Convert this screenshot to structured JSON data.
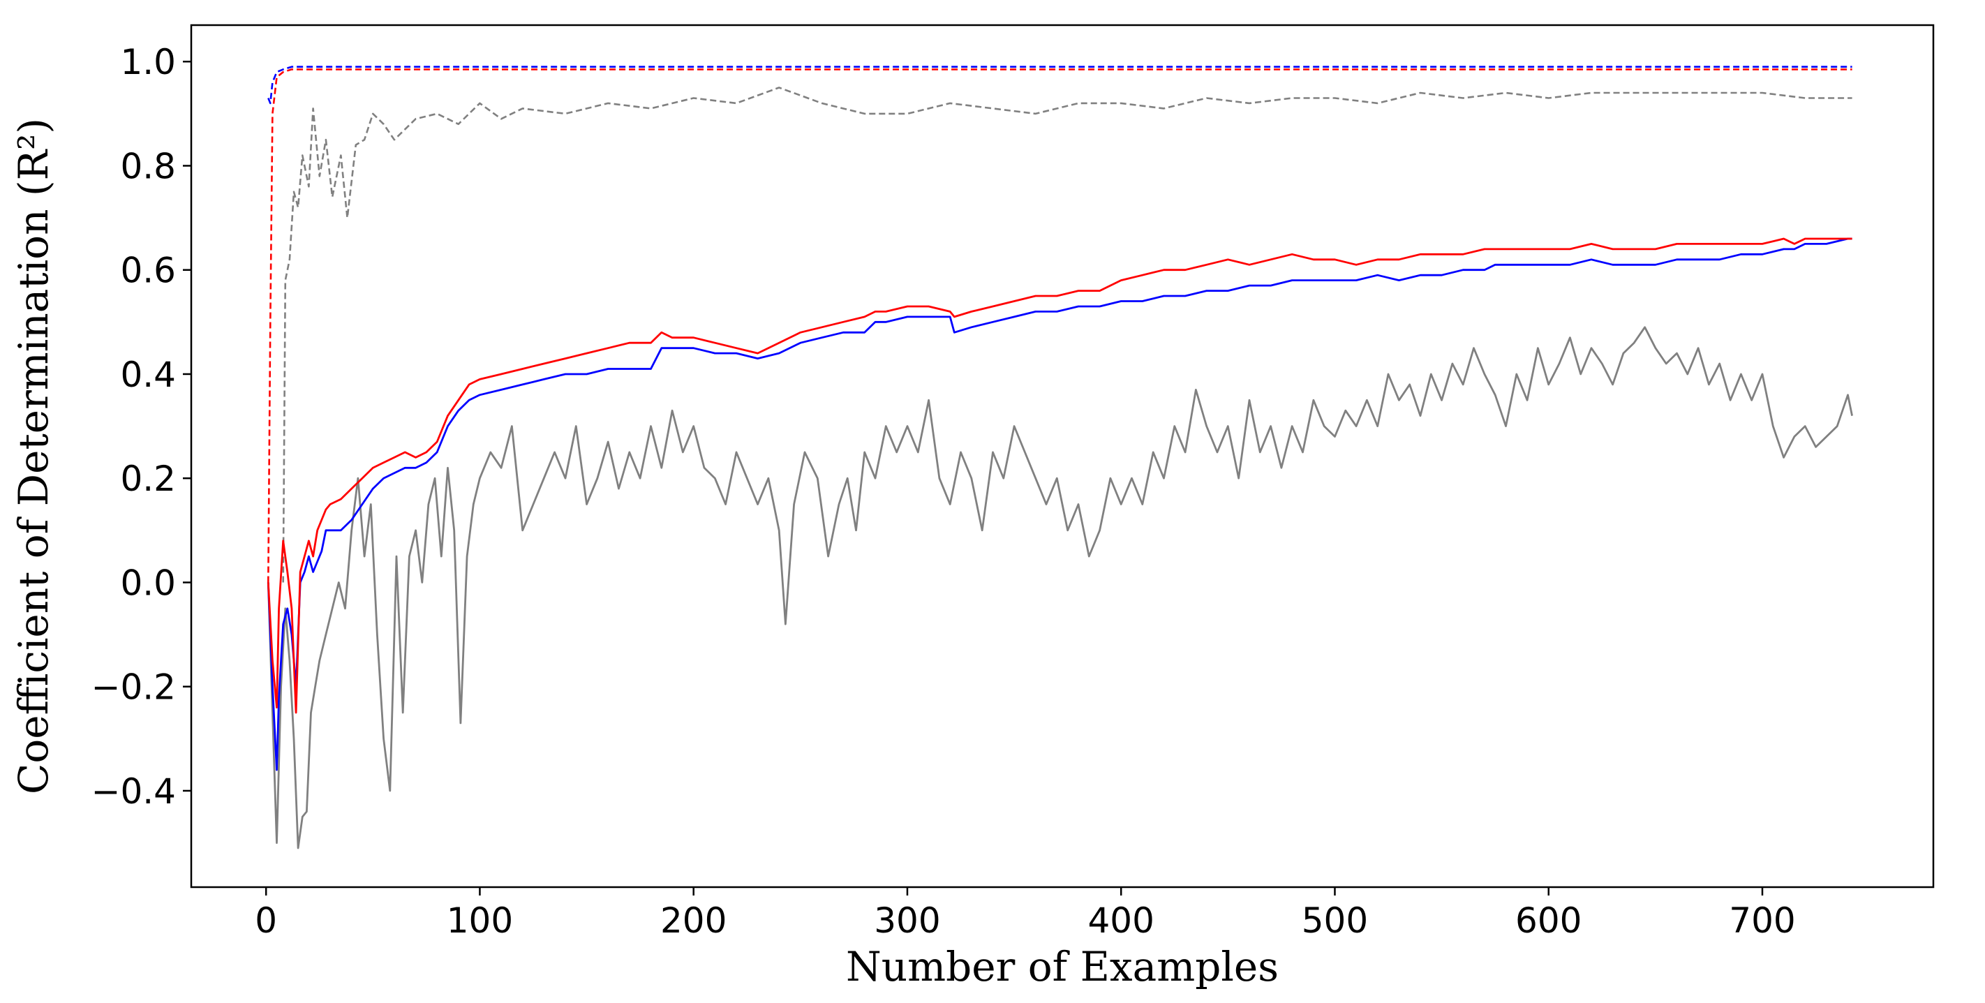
{
  "chart_data": {
    "type": "line",
    "title": "",
    "xlabel": "Number of Examples",
    "ylabel": "Coefficient of Determination (R²)",
    "xlim": [
      -35,
      780
    ],
    "ylim": [
      -0.585,
      1.07
    ],
    "x_ticks": [
      0,
      100,
      200,
      300,
      400,
      500,
      600,
      700
    ],
    "x_tick_labels": [
      "0",
      "100",
      "200",
      "300",
      "400",
      "500",
      "600",
      "700"
    ],
    "y_ticks": [
      -0.4,
      -0.2,
      0.0,
      0.2,
      0.4,
      0.6,
      0.8,
      1.0
    ],
    "y_tick_labels": [
      "−0.4",
      "−0.2",
      "0.0",
      "0.2",
      "0.4",
      "0.6",
      "0.8",
      "1.0"
    ],
    "grid": false,
    "legend": "none",
    "colors": {
      "red": "#ff0000",
      "blue": "#0000ff",
      "gray": "#808080"
    },
    "series": [
      {
        "name": "gray-dashed",
        "color": "#808080",
        "style": "dashed",
        "x": [
          8,
          9,
          11,
          13,
          15,
          17,
          20,
          22,
          25,
          28,
          31,
          35,
          38,
          42,
          46,
          50,
          55,
          60,
          70,
          80,
          90,
          100,
          110,
          120,
          140,
          160,
          180,
          200,
          220,
          240,
          260,
          280,
          300,
          320,
          340,
          360,
          380,
          400,
          420,
          440,
          460,
          480,
          500,
          520,
          540,
          560,
          580,
          600,
          620,
          640,
          660,
          680,
          700,
          720,
          742
        ],
        "y": [
          0.0,
          0.58,
          0.62,
          0.75,
          0.72,
          0.82,
          0.76,
          0.91,
          0.78,
          0.85,
          0.74,
          0.82,
          0.7,
          0.84,
          0.85,
          0.9,
          0.88,
          0.85,
          0.89,
          0.9,
          0.88,
          0.92,
          0.89,
          0.91,
          0.9,
          0.92,
          0.91,
          0.93,
          0.92,
          0.95,
          0.92,
          0.9,
          0.9,
          0.92,
          0.91,
          0.9,
          0.92,
          0.92,
          0.91,
          0.93,
          0.92,
          0.93,
          0.93,
          0.92,
          0.94,
          0.93,
          0.94,
          0.93,
          0.94,
          0.94,
          0.94,
          0.94,
          0.94,
          0.93,
          0.93
        ]
      },
      {
        "name": "blue-dashed",
        "color": "#0000ff",
        "style": "dashed",
        "x": [
          1,
          2,
          3,
          5,
          8,
          12,
          20,
          40,
          100,
          200,
          300,
          400,
          500,
          600,
          700,
          742
        ],
        "y": [
          0.93,
          0.92,
          0.96,
          0.98,
          0.985,
          0.99,
          0.99,
          0.99,
          0.99,
          0.99,
          0.99,
          0.99,
          0.99,
          0.99,
          0.99,
          0.99
        ]
      },
      {
        "name": "red-dashed",
        "color": "#ff0000",
        "style": "dashed",
        "x": [
          1,
          2,
          3,
          5,
          8,
          12,
          20,
          40,
          100,
          200,
          300,
          400,
          500,
          600,
          700,
          742
        ],
        "y": [
          0.0,
          0.5,
          0.9,
          0.97,
          0.98,
          0.985,
          0.985,
          0.985,
          0.985,
          0.985,
          0.985,
          0.985,
          0.985,
          0.985,
          0.985,
          0.985
        ]
      },
      {
        "name": "gray-solid",
        "color": "#808080",
        "style": "solid",
        "x": [
          1,
          3,
          5,
          7,
          9,
          11,
          13,
          15,
          17,
          19,
          21,
          23,
          25,
          28,
          31,
          34,
          37,
          40,
          43,
          46,
          49,
          52,
          55,
          58,
          61,
          64,
          67,
          70,
          73,
          76,
          79,
          82,
          85,
          88,
          91,
          94,
          97,
          100,
          105,
          110,
          115,
          120,
          125,
          130,
          135,
          140,
          145,
          150,
          155,
          160,
          165,
          170,
          175,
          180,
          185,
          190,
          195,
          200,
          205,
          210,
          215,
          220,
          225,
          230,
          235,
          240,
          243,
          247,
          252,
          258,
          263,
          268,
          272,
          276,
          280,
          285,
          290,
          295,
          300,
          305,
          310,
          315,
          320,
          325,
          330,
          335,
          340,
          345,
          350,
          355,
          360,
          365,
          370,
          375,
          380,
          385,
          390,
          395,
          400,
          405,
          410,
          415,
          420,
          425,
          430,
          435,
          440,
          445,
          450,
          455,
          460,
          465,
          470,
          475,
          480,
          485,
          490,
          495,
          500,
          505,
          510,
          515,
          520,
          525,
          530,
          535,
          540,
          545,
          550,
          555,
          560,
          565,
          570,
          575,
          580,
          585,
          590,
          595,
          600,
          605,
          610,
          615,
          620,
          625,
          630,
          635,
          640,
          645,
          650,
          655,
          660,
          665,
          670,
          675,
          680,
          685,
          690,
          695,
          700,
          705,
          710,
          715,
          720,
          725,
          730,
          735,
          740,
          742
        ],
        "y": [
          0.0,
          -0.25,
          -0.5,
          -0.2,
          -0.05,
          -0.15,
          -0.3,
          -0.51,
          -0.45,
          -0.44,
          -0.25,
          -0.2,
          -0.15,
          -0.1,
          -0.05,
          0.0,
          -0.05,
          0.1,
          0.2,
          0.05,
          0.15,
          -0.1,
          -0.3,
          -0.4,
          0.05,
          -0.25,
          0.05,
          0.1,
          0.0,
          0.15,
          0.2,
          0.05,
          0.22,
          0.1,
          -0.27,
          0.05,
          0.15,
          0.2,
          0.25,
          0.22,
          0.3,
          0.1,
          0.15,
          0.2,
          0.25,
          0.2,
          0.3,
          0.15,
          0.2,
          0.27,
          0.18,
          0.25,
          0.2,
          0.3,
          0.22,
          0.33,
          0.25,
          0.3,
          0.22,
          0.2,
          0.15,
          0.25,
          0.2,
          0.15,
          0.2,
          0.1,
          -0.08,
          0.15,
          0.25,
          0.2,
          0.05,
          0.15,
          0.2,
          0.1,
          0.25,
          0.2,
          0.3,
          0.25,
          0.3,
          0.25,
          0.35,
          0.2,
          0.15,
          0.25,
          0.2,
          0.1,
          0.25,
          0.2,
          0.3,
          0.25,
          0.2,
          0.15,
          0.2,
          0.1,
          0.15,
          0.05,
          0.1,
          0.2,
          0.15,
          0.2,
          0.15,
          0.25,
          0.2,
          0.3,
          0.25,
          0.37,
          0.3,
          0.25,
          0.3,
          0.2,
          0.35,
          0.25,
          0.3,
          0.22,
          0.3,
          0.25,
          0.35,
          0.3,
          0.28,
          0.33,
          0.3,
          0.35,
          0.3,
          0.4,
          0.35,
          0.38,
          0.32,
          0.4,
          0.35,
          0.42,
          0.38,
          0.45,
          0.4,
          0.36,
          0.3,
          0.4,
          0.35,
          0.45,
          0.38,
          0.42,
          0.47,
          0.4,
          0.45,
          0.42,
          0.38,
          0.44,
          0.46,
          0.49,
          0.45,
          0.42,
          0.44,
          0.4,
          0.45,
          0.38,
          0.42,
          0.35,
          0.4,
          0.35,
          0.4,
          0.3,
          0.24,
          0.28,
          0.3,
          0.26,
          0.28,
          0.3,
          0.36,
          0.32
        ]
      },
      {
        "name": "blue-solid",
        "color": "#0000ff",
        "style": "solid",
        "x": [
          1,
          3,
          5,
          6,
          8,
          10,
          12,
          14,
          16,
          18,
          20,
          22,
          24,
          26,
          28,
          30,
          35,
          40,
          45,
          50,
          55,
          60,
          65,
          70,
          75,
          80,
          85,
          90,
          95,
          100,
          110,
          120,
          130,
          140,
          150,
          160,
          170,
          180,
          185,
          190,
          200,
          210,
          220,
          230,
          240,
          250,
          260,
          270,
          280,
          285,
          290,
          300,
          310,
          320,
          322,
          330,
          340,
          350,
          360,
          370,
          380,
          390,
          400,
          410,
          420,
          430,
          440,
          450,
          460,
          470,
          480,
          490,
          500,
          510,
          520,
          530,
          540,
          550,
          560,
          570,
          575,
          580,
          590,
          600,
          610,
          620,
          630,
          640,
          650,
          660,
          670,
          680,
          690,
          700,
          710,
          715,
          720,
          730,
          740,
          742
        ],
        "y": [
          0.0,
          -0.2,
          -0.36,
          -0.22,
          -0.08,
          -0.05,
          -0.1,
          -0.2,
          0.0,
          0.02,
          0.05,
          0.02,
          0.04,
          0.06,
          0.1,
          0.1,
          0.1,
          0.12,
          0.15,
          0.18,
          0.2,
          0.21,
          0.22,
          0.22,
          0.23,
          0.25,
          0.3,
          0.33,
          0.35,
          0.36,
          0.37,
          0.38,
          0.39,
          0.4,
          0.4,
          0.41,
          0.41,
          0.41,
          0.45,
          0.45,
          0.45,
          0.44,
          0.44,
          0.43,
          0.44,
          0.46,
          0.47,
          0.48,
          0.48,
          0.5,
          0.5,
          0.51,
          0.51,
          0.51,
          0.48,
          0.49,
          0.5,
          0.51,
          0.52,
          0.52,
          0.53,
          0.53,
          0.54,
          0.54,
          0.55,
          0.55,
          0.56,
          0.56,
          0.57,
          0.57,
          0.58,
          0.58,
          0.58,
          0.58,
          0.59,
          0.58,
          0.59,
          0.59,
          0.6,
          0.6,
          0.61,
          0.61,
          0.61,
          0.61,
          0.61,
          0.62,
          0.61,
          0.61,
          0.61,
          0.62,
          0.62,
          0.62,
          0.63,
          0.63,
          0.64,
          0.64,
          0.65,
          0.65,
          0.66,
          0.66
        ]
      },
      {
        "name": "red-solid",
        "color": "#ff0000",
        "style": "solid",
        "x": [
          1,
          3,
          5,
          6,
          8,
          10,
          12,
          14,
          16,
          18,
          20,
          22,
          24,
          26,
          28,
          30,
          35,
          40,
          45,
          50,
          55,
          60,
          65,
          70,
          75,
          80,
          85,
          90,
          95,
          100,
          110,
          120,
          130,
          140,
          150,
          160,
          170,
          180,
          185,
          190,
          200,
          210,
          220,
          230,
          240,
          250,
          260,
          270,
          280,
          285,
          290,
          300,
          310,
          320,
          322,
          330,
          340,
          350,
          360,
          370,
          380,
          390,
          400,
          410,
          420,
          430,
          440,
          450,
          460,
          470,
          480,
          490,
          500,
          510,
          520,
          530,
          540,
          550,
          560,
          570,
          575,
          580,
          590,
          600,
          610,
          620,
          630,
          640,
          650,
          660,
          670,
          680,
          690,
          700,
          710,
          715,
          720,
          730,
          740,
          742
        ],
        "y": [
          0.0,
          -0.15,
          -0.24,
          -0.05,
          0.08,
          0.02,
          -0.05,
          -0.25,
          0.02,
          0.05,
          0.08,
          0.05,
          0.1,
          0.12,
          0.14,
          0.15,
          0.16,
          0.18,
          0.2,
          0.22,
          0.23,
          0.24,
          0.25,
          0.24,
          0.25,
          0.27,
          0.32,
          0.35,
          0.38,
          0.39,
          0.4,
          0.41,
          0.42,
          0.43,
          0.44,
          0.45,
          0.46,
          0.46,
          0.48,
          0.47,
          0.47,
          0.46,
          0.45,
          0.44,
          0.46,
          0.48,
          0.49,
          0.5,
          0.51,
          0.52,
          0.52,
          0.53,
          0.53,
          0.52,
          0.51,
          0.52,
          0.53,
          0.54,
          0.55,
          0.55,
          0.56,
          0.56,
          0.58,
          0.59,
          0.6,
          0.6,
          0.61,
          0.62,
          0.61,
          0.62,
          0.63,
          0.62,
          0.62,
          0.61,
          0.62,
          0.62,
          0.63,
          0.63,
          0.63,
          0.64,
          0.64,
          0.64,
          0.64,
          0.64,
          0.64,
          0.65,
          0.64,
          0.64,
          0.64,
          0.65,
          0.65,
          0.65,
          0.65,
          0.65,
          0.66,
          0.65,
          0.66,
          0.66,
          0.66,
          0.66
        ]
      }
    ]
  }
}
